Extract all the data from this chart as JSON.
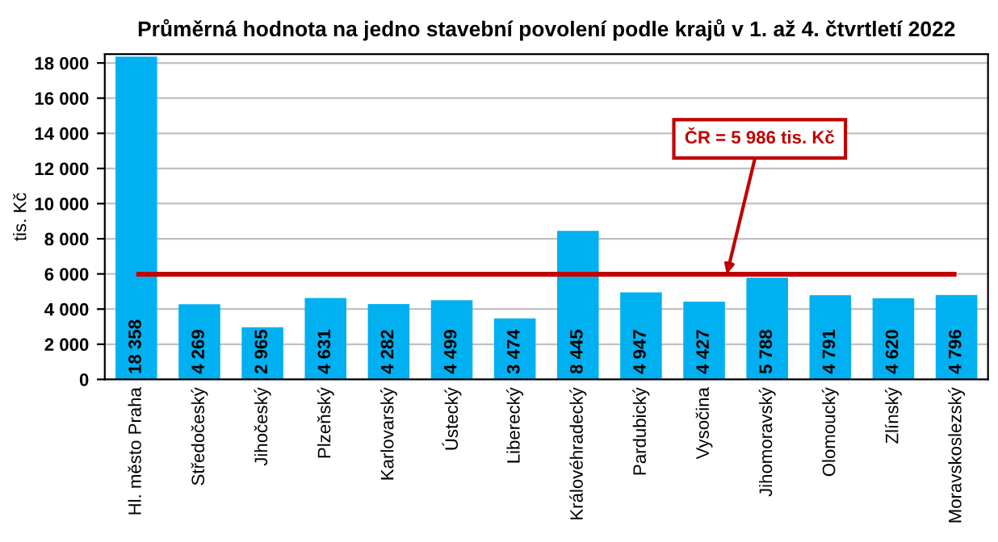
{
  "chart_data": {
    "type": "bar",
    "title": "Průměrná hodnota na jedno stavební povolení podle krajů v 1. až 4. čtvrtletí 2022",
    "ylabel": "tis. Kč",
    "categories": [
      "Hl. město Praha",
      "Středočeský",
      "Jihočeský",
      "Plzeňský",
      "Karlovarský",
      "Ústecký",
      "Liberecký",
      "Královéhradecký",
      "Pardubický",
      "Vysočina",
      "Jihomoravský",
      "Olomoucký",
      "Zlínský",
      "Moravskoslezský"
    ],
    "values": [
      18358,
      4269,
      2965,
      4631,
      4282,
      4499,
      3474,
      8445,
      4947,
      4427,
      5788,
      4791,
      4620,
      4796
    ],
    "value_labels": [
      "18 358",
      "4 269",
      "2 965",
      "4 631",
      "4 282",
      "4 499",
      "3 474",
      "8 445",
      "4 947",
      "4 427",
      "5 788",
      "4 791",
      "4 620",
      "4 796"
    ],
    "color": "#00b0f0",
    "ylim": [
      0,
      18500
    ],
    "yticks": [
      {
        "value": 0,
        "label": "0"
      },
      {
        "value": 2000,
        "label": "2 000"
      },
      {
        "value": 4000,
        "label": "4 000"
      },
      {
        "value": 6000,
        "label": "6 000"
      },
      {
        "value": 8000,
        "label": "8 000"
      },
      {
        "value": 10000,
        "label": "10 000"
      },
      {
        "value": 12000,
        "label": "12 000"
      },
      {
        "value": 14000,
        "label": "14 000"
      },
      {
        "value": 16000,
        "label": "16 000"
      },
      {
        "value": 18000,
        "label": "18 000"
      }
    ],
    "grid": "y",
    "legend": false,
    "ref_lines": [
      {
        "axis": "y",
        "value": 5986,
        "label": "ČR = 5 986 tis. Kč",
        "color": "#c00000",
        "line_style": "solid"
      }
    ]
  }
}
